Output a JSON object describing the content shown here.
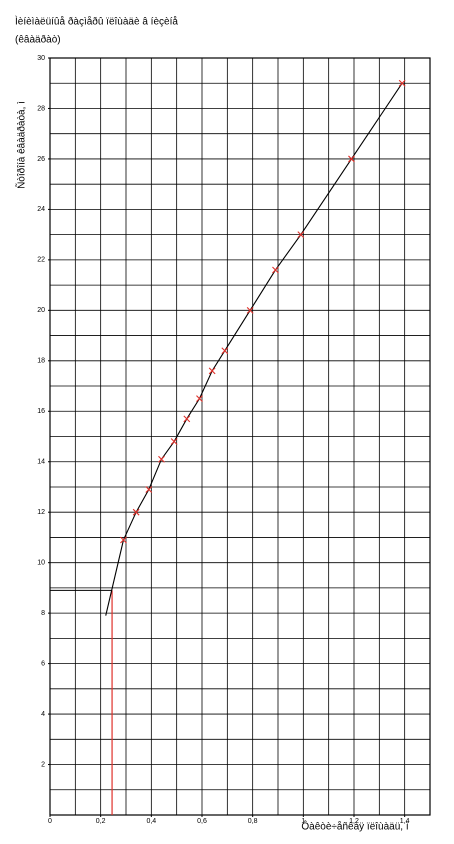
{
  "chart_data": {
    "type": "line",
    "title": "Ìèíèìàëüíûå ðàçìåðû ïëîùàäè â íèçèíå",
    "subtitle": "(êâàäðàò)",
    "y_label": "Ñòîðîíà êâàäðàòà, ì",
    "x_label": "Ôàêòè÷åñêàÿ ïëîùàäü, ì",
    "series": [
      {
        "name": "curve",
        "color": "#000000",
        "x": [
          0.22,
          0.29,
          0.34,
          0.39,
          0.44,
          0.49,
          0.54,
          0.59,
          0.64,
          0.69,
          0.79,
          0.89,
          0.99,
          1.19,
          1.39
        ],
        "values": [
          7.9,
          10.9,
          12.0,
          12.9,
          14.1,
          14.8,
          15.7,
          16.5,
          17.6,
          18.4,
          20.0,
          21.6,
          23.0,
          26.0,
          29.0
        ]
      },
      {
        "name": "points",
        "color": "#e0302a",
        "x": [
          0.29,
          0.34,
          0.39,
          0.44,
          0.49,
          0.54,
          0.59,
          0.64,
          0.69,
          0.79,
          0.89,
          0.99,
          1.19,
          1.39
        ],
        "values": [
          10.9,
          12.0,
          12.9,
          14.1,
          14.8,
          15.7,
          16.5,
          17.6,
          18.4,
          20.0,
          21.6,
          23.0,
          26.0,
          29.0
        ]
      }
    ],
    "guide": {
      "x": 0.245,
      "y": 8.9,
      "color": "#e0302a"
    },
    "xlim": [
      0,
      1.5
    ],
    "ylim": [
      0,
      30
    ],
    "xticks": [
      0,
      {
        "value": 0.2,
        "label": "0,2"
      },
      {
        "value": 0.4,
        "label": "0,4"
      },
      {
        "value": 0.6,
        "label": "0,6"
      },
      {
        "value": 0.8,
        "label": "0,8"
      },
      1,
      {
        "value": 1.2,
        "label": "1,2"
      },
      {
        "value": 1.4,
        "label": "1,4"
      }
    ],
    "yticks": [
      2,
      4,
      6,
      8,
      10,
      12,
      14,
      16,
      18,
      20,
      22,
      24,
      26,
      28,
      30
    ],
    "x_minor": 0.1,
    "y_minor": 1,
    "grid": true
  }
}
